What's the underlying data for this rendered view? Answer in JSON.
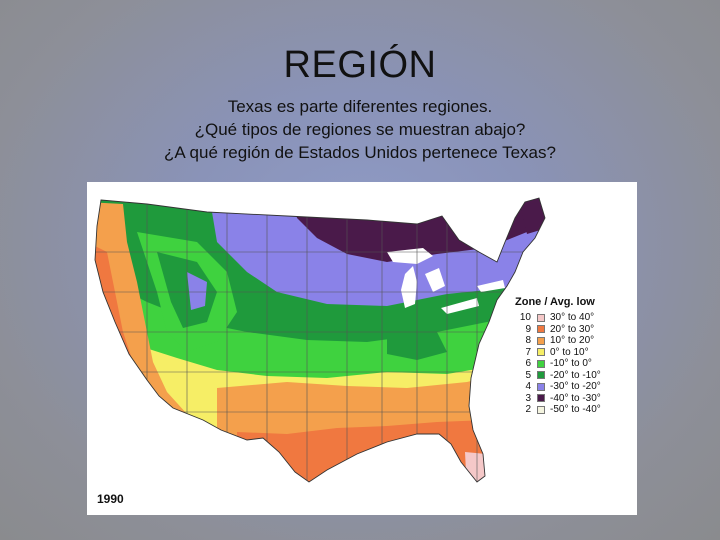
{
  "title": "REGIÓN",
  "body_lines": [
    "Texas es parte diferentes regiones.",
    "¿Qué tipos de regiones se muestran abajo?",
    "¿A qué región de Estados Unidos pertenece Texas?"
  ],
  "map": {
    "year": "1990",
    "legend": {
      "header": "Zone / Avg. low",
      "rows": [
        {
          "zone": "10",
          "range": "30° to 40°",
          "color": "#f5c8c8"
        },
        {
          "zone": "9",
          "range": "20° to 30°",
          "color": "#f07840"
        },
        {
          "zone": "8",
          "range": "10° to 20°",
          "color": "#f4a04c"
        },
        {
          "zone": "7",
          "range": "0° to 10°",
          "color": "#f6ee66"
        },
        {
          "zone": "6",
          "range": "-10° to 0°",
          "color": "#3fd23f"
        },
        {
          "zone": "5",
          "range": "-20° to -10°",
          "color": "#1f9a3c"
        },
        {
          "zone": "4",
          "range": "-30° to -20°",
          "color": "#8a82e8"
        },
        {
          "zone": "3",
          "range": "-40° to -30°",
          "color": "#4a1a4a"
        },
        {
          "zone": "2",
          "range": "-50° to -40°",
          "color": "#f4f4e0"
        }
      ]
    }
  }
}
